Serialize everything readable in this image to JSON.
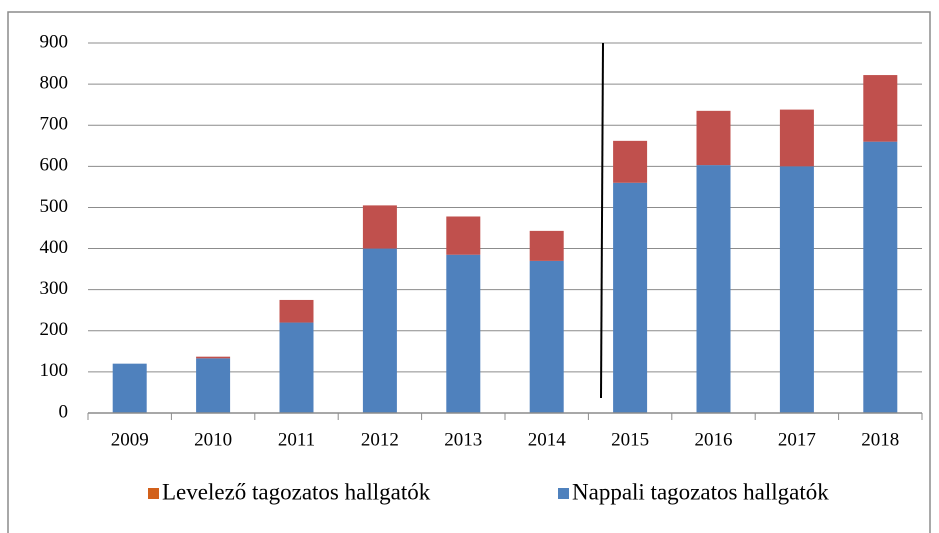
{
  "chart_data": {
    "type": "stacked_bar",
    "categories": [
      "2009",
      "2010",
      "2011",
      "2012",
      "2013",
      "2014",
      "2015",
      "2016",
      "2017",
      "2018"
    ],
    "series": [
      {
        "name": "Levelező tagozatos hallgatók",
        "color": "#c0504d",
        "legend_color": "#d2601a",
        "values": [
          0,
          4,
          55,
          105,
          93,
          73,
          102,
          132,
          138,
          162
        ]
      },
      {
        "name": "Nappali tagozatos hallgatók",
        "color": "#4f81bd",
        "legend_color": "#4f81bd",
        "values": [
          120,
          133,
          220,
          400,
          385,
          370,
          560,
          603,
          600,
          660
        ]
      }
    ],
    "stack_order": [
      1,
      0
    ],
    "ylim": [
      0,
      900
    ],
    "yticks": [
      0,
      100,
      200,
      300,
      400,
      500,
      600,
      700,
      800,
      900
    ],
    "grid": true
  }
}
